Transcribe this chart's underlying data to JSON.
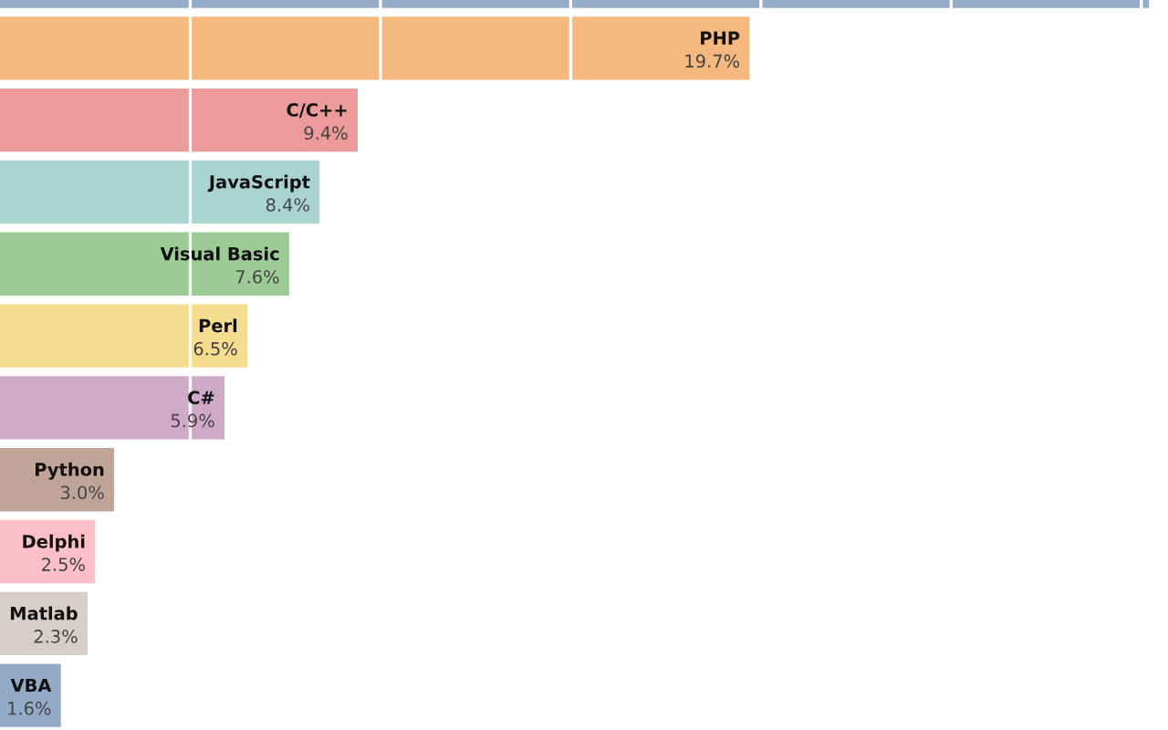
{
  "chart_data": {
    "type": "bar",
    "orientation": "horizontal",
    "categories": [
      null,
      "PHP",
      "C/C++",
      "JavaScript",
      "Visual Basic",
      "Perl",
      "C#",
      "Python",
      "Delphi",
      "Matlab",
      "VBA"
    ],
    "values": [
      30.2,
      19.7,
      9.4,
      8.4,
      7.6,
      6.5,
      5.9,
      3.0,
      2.5,
      2.3,
      1.6
    ],
    "value_labels": [
      null,
      "19.7%",
      "9.4%",
      "8.4%",
      "7.6%",
      "6.5%",
      "5.9%",
      "3.0%",
      "2.5%",
      "2.3%",
      "1.6%"
    ],
    "colors": [
      "#94acc8",
      "#f5b87e",
      "#ec9a9a",
      "#a9d4d2",
      "#9ccb95",
      "#f5dc8e",
      "#cfaac8",
      "#c0a497",
      "#fdbfc8",
      "#d6ceca",
      "#93abc8"
    ],
    "xlim": [
      0,
      30.7
    ],
    "xticks": [
      {
        "value": 5,
        "label": null
      },
      {
        "value": 10,
        "label": null
      },
      {
        "value": 15,
        "label": null
      },
      {
        "value": 20,
        "label": null
      },
      {
        "value": 25,
        "label": null
      },
      {
        "value": 30,
        "label": null
      }
    ],
    "grid": "x"
  }
}
